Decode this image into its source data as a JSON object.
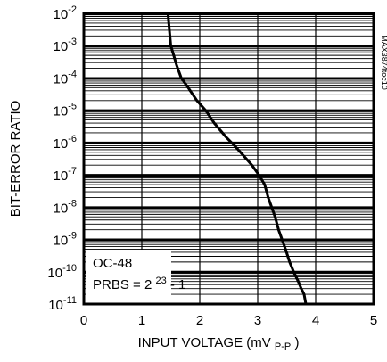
{
  "chart_data": {
    "type": "line",
    "title": "",
    "xlabel": "INPUT VOLTAGE (mV",
    "xlabel_sub": "P-P",
    "xlabel_close": ")",
    "ylabel": "BIT-ERROR RATIO",
    "xlim": [
      0,
      5
    ],
    "ylim": [
      1e-11,
      0.01
    ],
    "yscale": "log",
    "grid": true,
    "x_ticks": [
      "0",
      "1",
      "2",
      "3",
      "4",
      "5"
    ],
    "y_ticks": [
      {
        "base": "10",
        "exp": "-2"
      },
      {
        "base": "10",
        "exp": "-3"
      },
      {
        "base": "10",
        "exp": "-4"
      },
      {
        "base": "10",
        "exp": "-5"
      },
      {
        "base": "10",
        "exp": "-6"
      },
      {
        "base": "10",
        "exp": "-7"
      },
      {
        "base": "10",
        "exp": "-8"
      },
      {
        "base": "10",
        "exp": "-9"
      },
      {
        "base": "10",
        "exp": "-10"
      },
      {
        "base": "10",
        "exp": "-11"
      }
    ],
    "annotation": {
      "line1": "OC-48",
      "line2_prefix": "PRBS = 2",
      "line2_exp": "23",
      "line2_suffix": " - 1"
    },
    "figure_id": "MAX3874toc10",
    "series": [
      {
        "x": [
          1.45,
          1.5,
          1.55,
          1.6,
          1.68,
          1.8,
          1.95,
          2.1,
          2.25,
          2.45,
          2.6,
          2.75,
          2.9,
          3.02,
          3.12,
          3.18,
          3.24,
          3.3,
          3.36,
          3.42,
          3.48,
          3.55,
          3.62,
          3.7,
          3.75,
          3.8,
          3.83
        ],
        "y": [
          0.01,
          0.001,
          0.0005,
          0.00025,
          0.0001,
          5e-05,
          2e-05,
          1e-05,
          4e-06,
          1.5e-06,
          8e-07,
          4e-07,
          2e-07,
          1e-07,
          5e-08,
          2e-08,
          1e-08,
          5e-09,
          2e-09,
          1e-09,
          5e-10,
          2e-10,
          1e-10,
          5e-11,
          3e-11,
          2e-11,
          1e-11
        ]
      }
    ]
  }
}
